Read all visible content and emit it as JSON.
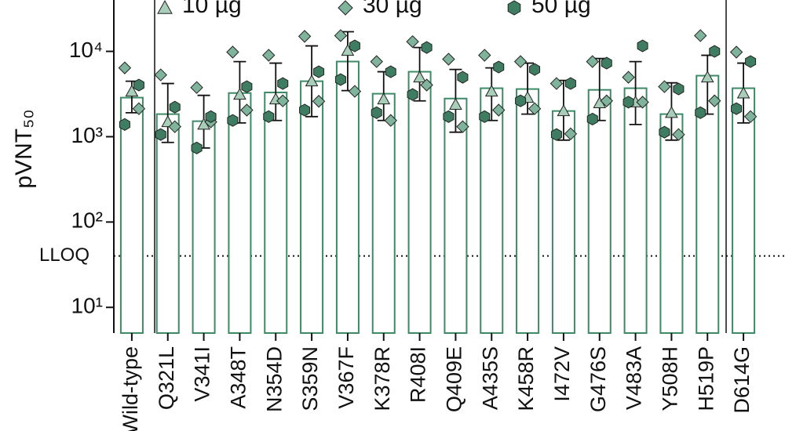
{
  "chart_data": {
    "type": "bar",
    "y_label": "pVNT₅₀",
    "log": true,
    "ylim": [
      5,
      40000
    ],
    "yticks": [
      {
        "value": 10,
        "label": "10¹"
      },
      {
        "value": 100,
        "label": "10²"
      },
      {
        "value": 1000,
        "label": "10³"
      },
      {
        "value": 10000,
        "label": "10⁴"
      }
    ],
    "lloq": {
      "label": "LLOQ",
      "value": 40
    },
    "color": "#3d8a67",
    "categories": [
      "Wild-type",
      "Q321L",
      "V341I",
      "A348T",
      "N354D",
      "S359N",
      "V367F",
      "K378R",
      "R408I",
      "Q409E",
      "A435S",
      "K458R",
      "I472V",
      "G476S",
      "V483A",
      "Y508H",
      "H519P",
      "D614G"
    ],
    "values": [
      2870,
      1840,
      1520,
      3250,
      3300,
      4470,
      7600,
      3190,
      5770,
      2800,
      3700,
      3620,
      2000,
      3540,
      3700,
      1840,
      5190,
      3700
    ],
    "error_high": [
      4470,
      4200,
      3050,
      7590,
      7280,
      11600,
      17000,
      5770,
      11100,
      6140,
      6410,
      7280,
      4570,
      8260,
      7590,
      4280,
      9000,
      7280
    ],
    "error_low": [
      1910,
      857,
      738,
      1450,
      1550,
      1720,
      3470,
      1550,
      2630,
      1130,
      1550,
      1840,
      912,
      1550,
      1390,
      912,
      1840,
      1450
    ],
    "series": [
      {
        "name": "10 µg",
        "marker": "triangle",
        "color": "#a8cdb9",
        "values": [
          [
            3400
          ],
          [
            1490
          ],
          [
            1390
          ],
          [
            3120
          ],
          [
            2750
          ],
          [
            4470
          ],
          [
            10200
          ],
          [
            2750
          ],
          [
            4970
          ],
          [
            2380
          ],
          [
            3400
          ],
          [
            2870
          ],
          [
            2000
          ],
          [
            2480
          ],
          [
            2540
          ],
          [
            1910
          ],
          [
            4970
          ],
          [
            3230
          ]
        ]
      },
      {
        "name": "30 µg",
        "marker": "diamond",
        "color": "#7fb39b",
        "values": [
          [
            6400,
            2130
          ],
          [
            5300,
            1310
          ],
          [
            3770,
            1490
          ],
          [
            9800,
            2050
          ],
          [
            9000,
            2630
          ],
          [
            15000,
            2600
          ],
          [
            15300,
            3400
          ],
          [
            7590,
            1550
          ],
          [
            13000,
            4030
          ],
          [
            8100,
            1310
          ],
          [
            9000,
            2050
          ],
          [
            7590,
            2130
          ],
          [
            4200,
            1080
          ],
          [
            7590,
            2630
          ],
          [
            4970,
            2540
          ],
          [
            3860,
            1060
          ],
          [
            15300,
            2630
          ],
          [
            9800,
            1720
          ]
        ]
      },
      {
        "name": "50 µg",
        "marker": "hexagon",
        "color": "#3f7d62",
        "values": [
          [
            4030,
            1390
          ],
          [
            2220,
            1060
          ],
          [
            1720,
            738
          ],
          [
            3860,
            1550
          ],
          [
            4200,
            1720
          ],
          [
            5770,
            2050
          ],
          [
            11600,
            4670
          ],
          [
            5770,
            1910
          ],
          [
            11100,
            3120
          ],
          [
            4970,
            1720
          ],
          [
            6550,
            1720
          ],
          [
            6140,
            2630
          ],
          [
            4200,
            1060
          ],
          [
            7280,
            1610
          ],
          [
            11600,
            2540
          ],
          [
            3620,
            1130
          ],
          [
            10000,
            1910
          ],
          [
            7590,
            2130
          ]
        ]
      }
    ]
  }
}
